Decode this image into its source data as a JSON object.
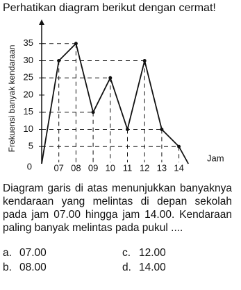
{
  "header": {
    "title": "Perhatikan diagram berikut dengan cermat!"
  },
  "chart_data": {
    "type": "line",
    "ylabel": "Frekuensi banyak kendaraan",
    "xlabel": "Jam",
    "categories": [
      null,
      "07",
      "08",
      "09",
      "10",
      "11",
      "12",
      "13",
      "14",
      null
    ],
    "values": [
      0,
      30,
      35,
      15,
      25,
      10,
      30,
      10,
      5,
      0
    ],
    "ylim": [
      0,
      40
    ],
    "yticks": [
      0,
      5,
      10,
      15,
      20,
      25,
      30,
      35
    ],
    "color": "#111111",
    "guides": true
  },
  "question": {
    "text": "Diagram garis di atas menunjukkan banyaknya kendaraan yang melintas di depan sekolah pada jam 07.00 hingga jam 14.00. Kendaraan paling banyak melintas pada pukul ....",
    "options": [
      {
        "letter": "a.",
        "text": "07.00"
      },
      {
        "letter": "b.",
        "text": "08.00"
      },
      {
        "letter": "c.",
        "text": "12.00"
      },
      {
        "letter": "d.",
        "text": "14.00"
      }
    ]
  }
}
